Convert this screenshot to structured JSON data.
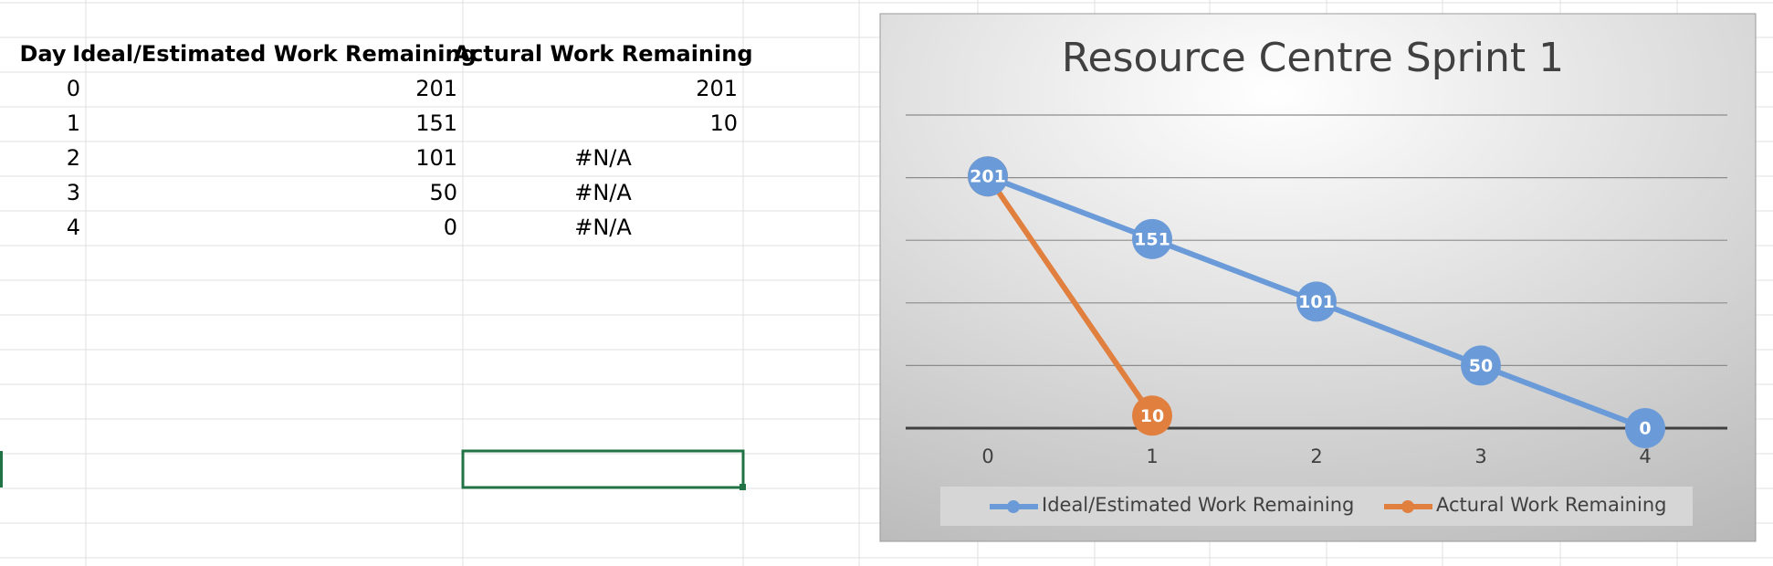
{
  "table": {
    "header": [
      "Day",
      "Ideal/Estimated Work Remaining",
      "Actural Work Remaining"
    ],
    "rows": [
      [
        0,
        201,
        201
      ],
      [
        1,
        151,
        10
      ],
      [
        2,
        101,
        "#N/A"
      ],
      [
        3,
        50,
        "#N/A"
      ],
      [
        4,
        0,
        "#N/A"
      ]
    ]
  },
  "chart_data": {
    "type": "line",
    "title": "Resource Centre Sprint 1",
    "categories": [
      0,
      1,
      2,
      3,
      4
    ],
    "series": [
      {
        "name": "Ideal/Estimated Work Remaining",
        "color": "#6a9bd8",
        "values": [
          201,
          151,
          101,
          50,
          0
        ]
      },
      {
        "name": "Actural Work Remaining",
        "color": "#e07f3e",
        "values": [
          201,
          10,
          null,
          null,
          null
        ]
      }
    ],
    "ylim": [
      0,
      250
    ],
    "yticks": [
      0,
      50,
      100,
      150,
      200,
      250
    ],
    "grid": true,
    "legend": "bottom",
    "data_labels": true
  }
}
